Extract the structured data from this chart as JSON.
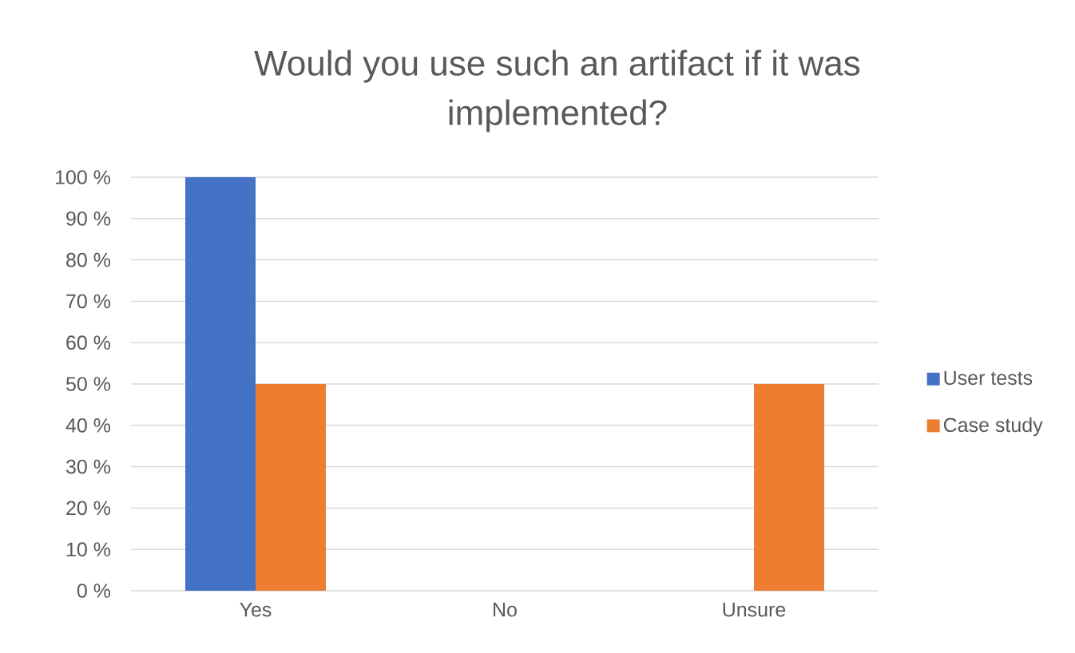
{
  "chart_data": {
    "type": "bar",
    "title": "Would you use such an artifact if it was implemented?",
    "categories": [
      "Yes",
      "No",
      "Unsure"
    ],
    "series": [
      {
        "name": "User tests",
        "color": "#4472c4",
        "values": [
          100,
          0,
          0
        ]
      },
      {
        "name": "Case study",
        "color": "#ed7d31",
        "values": [
          50,
          0,
          50
        ]
      }
    ],
    "ylim": [
      0,
      100
    ],
    "yticks": [
      {
        "value": 0,
        "label": "0 %"
      },
      {
        "value": 10,
        "label": "10 %"
      },
      {
        "value": 20,
        "label": "20 %"
      },
      {
        "value": 30,
        "label": "30 %"
      },
      {
        "value": 40,
        "label": "40 %"
      },
      {
        "value": 50,
        "label": "50 %"
      },
      {
        "value": 60,
        "label": "60 %"
      },
      {
        "value": 70,
        "label": "70 %"
      },
      {
        "value": 80,
        "label": "80 %"
      },
      {
        "value": 90,
        "label": "90 %"
      },
      {
        "value": 100,
        "label": "100 %"
      }
    ],
    "grid": "y",
    "legend": "right"
  }
}
